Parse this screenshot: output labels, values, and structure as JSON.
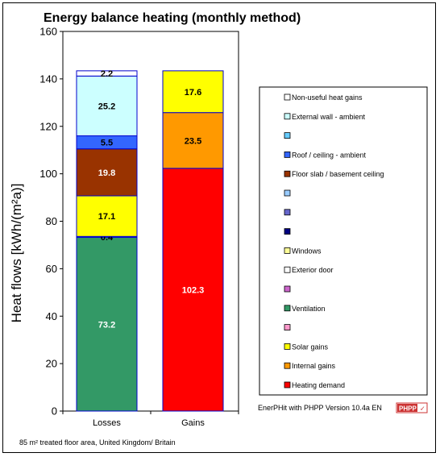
{
  "chart_data": {
    "type": "bar",
    "stacked": true,
    "title": "Energy balance heating (monthly method)",
    "ylabel": "Heat flows [kWh/(m²a)]",
    "xlabel": "",
    "ylim": [
      0,
      160
    ],
    "yticks": [
      0,
      20,
      40,
      60,
      80,
      100,
      120,
      140,
      160
    ],
    "grid": false,
    "categories": [
      "Losses",
      "Gains"
    ],
    "series": [
      {
        "name": "Ventilation",
        "stack": "Losses",
        "value": 73.2,
        "label": "73.2",
        "color": "#339966",
        "label_color": "#ffffff"
      },
      {
        "name": "Exterior door",
        "stack": "Losses",
        "value": 0.4,
        "label": "0.4",
        "color": "#ffffff",
        "label_color": "#000000"
      },
      {
        "name": "Windows",
        "stack": "Losses",
        "value": 17.1,
        "label": "17.1",
        "color": "#ffff00",
        "label_color": "#000000"
      },
      {
        "name": "Floor slab / basement ceiling",
        "stack": "Losses",
        "value": 19.8,
        "label": "19.8",
        "color": "#993300",
        "label_color": "#ffffff"
      },
      {
        "name": "Roof / ceiling - ambient",
        "stack": "Losses",
        "value": 5.5,
        "label": "5.5",
        "color": "#3366ff",
        "label_color": "#000000"
      },
      {
        "name": "External wall - ambient",
        "stack": "Losses",
        "value": 25.2,
        "label": "25.2",
        "color": "#ccffff",
        "label_color": "#000000"
      },
      {
        "name": "Non-useful heat gains",
        "stack": "Losses",
        "value": 2.2,
        "label": "2.2",
        "color": "#ffffff",
        "label_color": "#000000"
      },
      {
        "name": "Heating demand",
        "stack": "Gains",
        "value": 102.3,
        "label": "102.3",
        "color": "#ff0000",
        "label_color": "#ffffff"
      },
      {
        "name": "Internal gains",
        "stack": "Gains",
        "value": 23.5,
        "label": "23.5",
        "color": "#ff9900",
        "label_color": "#000000"
      },
      {
        "name": "Solar gains",
        "stack": "Gains",
        "value": 17.6,
        "label": "17.6",
        "color": "#ffff00",
        "label_color": "#000000"
      }
    ],
    "legend_placement": "right",
    "legend": [
      {
        "label": "Non-useful heat gains",
        "color": "#ffffff"
      },
      {
        "label": "External wall - ambient",
        "color": "#ccffff"
      },
      {
        "label": "",
        "color": "#66ccff"
      },
      {
        "label": "Roof / ceiling - ambient",
        "color": "#3366ff"
      },
      {
        "label": "Floor slab / basement ceiling",
        "color": "#993300"
      },
      {
        "label": "",
        "color": "#99ccff"
      },
      {
        "label": "",
        "color": "#6666cc"
      },
      {
        "label": "",
        "color": "#000080"
      },
      {
        "label": "Windows",
        "color": "#ffff99"
      },
      {
        "label": "Exterior door",
        "color": "#ffffff"
      },
      {
        "label": "",
        "color": "#cc66cc"
      },
      {
        "label": "Ventilation",
        "color": "#339966"
      },
      {
        "label": "",
        "color": "#ff99cc"
      },
      {
        "label": "Solar gains",
        "color": "#ffff00"
      },
      {
        "label": "Internal gains",
        "color": "#ff9900"
      },
      {
        "label": "Heating demand",
        "color": "#ff0000"
      }
    ]
  },
  "footer": {
    "version_text": "EnerPHit with PHPP Version 10.4a EN",
    "logo_text": "PHPP",
    "note": "85 m² treated floor area, United Kingdom/ Britain"
  }
}
